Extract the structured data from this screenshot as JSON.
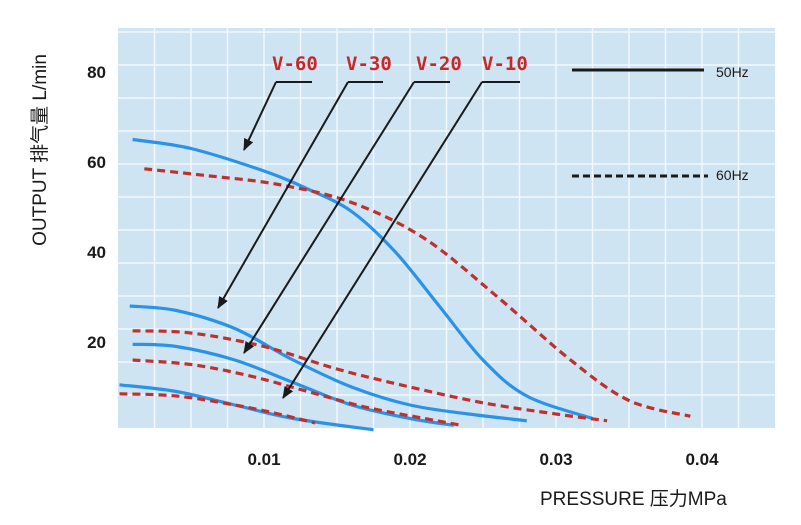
{
  "chart_data": {
    "type": "line",
    "title": "",
    "xlabel": "PRESSURE 压力MPa",
    "ylabel": "OUTPUT 排气量 L/min",
    "xlim": [
      0,
      0.045
    ],
    "ylim": [
      0,
      90
    ],
    "xticks": [
      "0.01",
      "0.02",
      "0.03",
      "0.04"
    ],
    "xtick_values": [
      0.01,
      0.02,
      0.03,
      0.04
    ],
    "yticks": [
      "20",
      "40",
      "60",
      "80"
    ],
    "ytick_values": [
      20,
      40,
      60,
      80
    ],
    "grid": true,
    "legend": [
      {
        "label": "50Hz",
        "style": "solid"
      },
      {
        "label": "60Hz",
        "style": "dashed"
      }
    ],
    "model_labels": [
      "V-60",
      "V-30",
      "V-20",
      "V-10"
    ],
    "series": [
      {
        "model": "V-60",
        "freq": "50Hz",
        "style": "solid",
        "x": [
          0.001,
          0.005,
          0.01,
          0.013,
          0.016,
          0.019,
          0.022,
          0.025,
          0.028,
          0.0325
        ],
        "y": [
          65,
          63,
          58,
          54,
          49,
          40,
          28,
          16,
          8,
          3
        ]
      },
      {
        "model": "V-60",
        "freq": "60Hz",
        "style": "dashed",
        "x": [
          0.0018,
          0.006,
          0.011,
          0.016,
          0.021,
          0.026,
          0.031,
          0.035,
          0.0392
        ],
        "y": [
          58.5,
          57,
          55,
          51,
          43,
          30,
          16,
          7,
          3.5
        ]
      },
      {
        "model": "V-30",
        "freq": "50Hz",
        "style": "solid",
        "x": [
          0.0008,
          0.004,
          0.008,
          0.012,
          0.016,
          0.02,
          0.024,
          0.028
        ],
        "y": [
          28,
          27,
          23,
          16,
          10,
          6,
          4,
          2.5
        ]
      },
      {
        "model": "V-30",
        "freq": "60Hz",
        "style": "dashed",
        "x": [
          0.001,
          0.005,
          0.01,
          0.015,
          0.02,
          0.025,
          0.03,
          0.0335
        ],
        "y": [
          22.5,
          22,
          19,
          14,
          10,
          6.5,
          4,
          2.5
        ]
      },
      {
        "model": "V-20",
        "freq": "50Hz",
        "style": "solid",
        "x": [
          0.001,
          0.004,
          0.008,
          0.012,
          0.016,
          0.02,
          0.023
        ],
        "y": [
          19.5,
          19,
          16,
          11,
          6,
          3,
          1.5
        ]
      },
      {
        "model": "V-20",
        "freq": "60Hz",
        "style": "dashed",
        "x": [
          0.001,
          0.005,
          0.009,
          0.013,
          0.017,
          0.021,
          0.0235
        ],
        "y": [
          16,
          15,
          12.5,
          9,
          5.5,
          3,
          1.5
        ]
      },
      {
        "model": "V-10",
        "freq": "50Hz",
        "style": "solid",
        "x": [
          0.0001,
          0.004,
          0.008,
          0.012,
          0.0175
        ],
        "y": [
          10.5,
          9,
          6,
          3,
          0.5
        ]
      },
      {
        "model": "V-10",
        "freq": "60Hz",
        "style": "dashed",
        "x": [
          0.0001,
          0.004,
          0.008,
          0.011,
          0.0135
        ],
        "y": [
          8.5,
          8,
          6,
          4,
          2
        ]
      }
    ]
  },
  "colors": {
    "plot_bg": "#cfe4f3",
    "grid": "#f2f8fd",
    "solid_line": "#2a93e8",
    "dashed_line": "#c0302c",
    "model_text": "#c62828",
    "ink": "#1a1a1a"
  }
}
